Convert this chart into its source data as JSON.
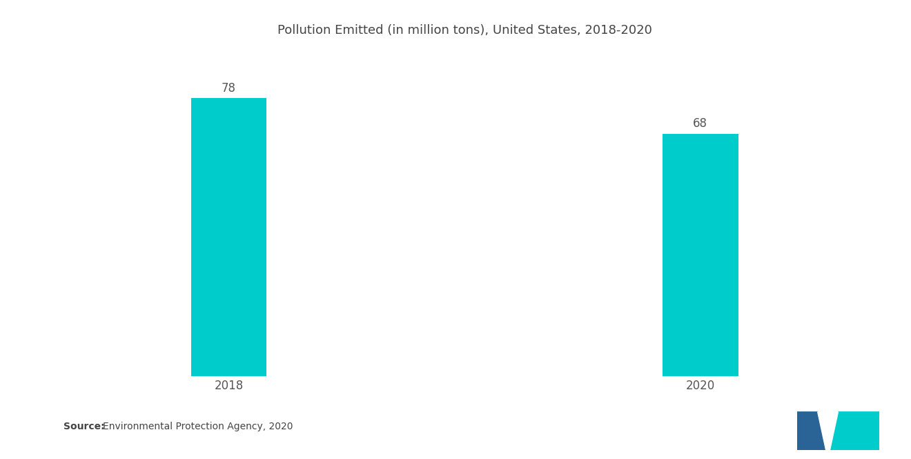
{
  "title": "Pollution Emitted (in million tons), United States, 2018-2020",
  "categories": [
    "2018",
    "2020"
  ],
  "values": [
    78,
    68
  ],
  "bar_color": "#00CCCC",
  "bar_width": 0.32,
  "bar_positions": [
    1,
    3
  ],
  "value_labels": [
    "78",
    "68"
  ],
  "ylim": [
    0,
    90
  ],
  "xlim": [
    0.3,
    3.7
  ],
  "background_color": "#ffffff",
  "title_fontsize": 13,
  "value_fontsize": 12,
  "source_text_bold": "Source:",
  "source_text": "  Environmental Protection Agency, 2020",
  "source_fontsize": 10,
  "tick_fontsize": 12,
  "label_color": "#555555",
  "title_color": "#444444"
}
